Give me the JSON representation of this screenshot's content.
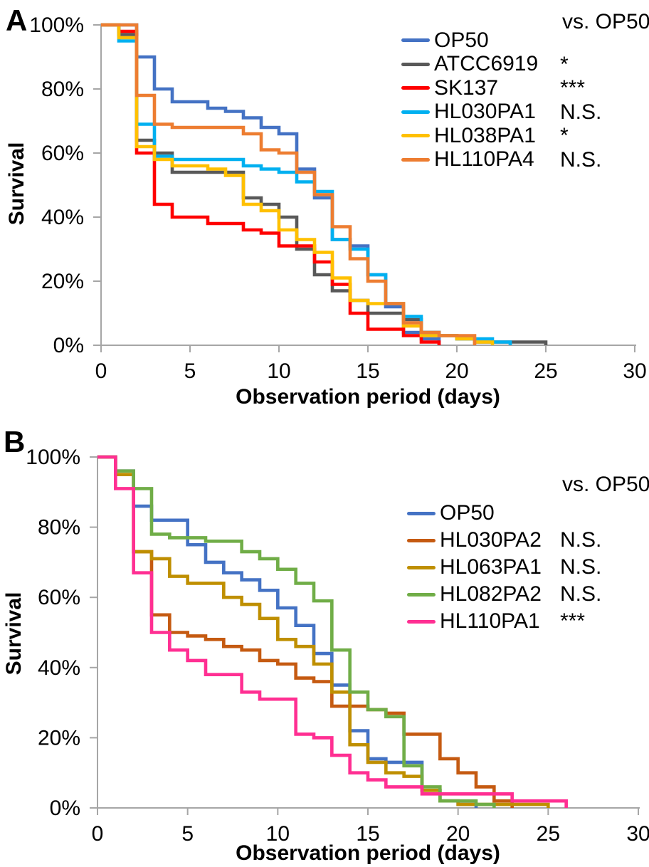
{
  "figure": {
    "background": "#ffffff",
    "axis_color": "#a6a6a6",
    "text_color": "#000000"
  },
  "chart_data": [
    {
      "type": "line",
      "subtype": "kaplan-meier-step-survival",
      "panel_letter": "A",
      "xlabel": "Observation period (days)",
      "ylabel": "Survival",
      "legend_header": "vs. OP50",
      "legend_position": "upper right",
      "xlim": [
        0,
        30
      ],
      "ylim": [
        0,
        100
      ],
      "grid": false,
      "x_tick_labels": [
        "0",
        "5",
        "10",
        "15",
        "20",
        "25",
        "30"
      ],
      "y_tick_labels": [
        "100%",
        "80%",
        "60%",
        "40%",
        "20%",
        "0%"
      ],
      "point_format": "[day, percent_survival]",
      "series": [
        {
          "name": "OP50",
          "significance_vs_op50": "",
          "color": "#4472C4",
          "points": [
            [
              0,
              100
            ],
            [
              2,
              90
            ],
            [
              3,
              80
            ],
            [
              4,
              76
            ],
            [
              6,
              74
            ],
            [
              7,
              73
            ],
            [
              8,
              71
            ],
            [
              9,
              68
            ],
            [
              10,
              66
            ],
            [
              11,
              55
            ],
            [
              12,
              46
            ],
            [
              13,
              33
            ],
            [
              14,
              31
            ],
            [
              15,
              22
            ],
            [
              16,
              12
            ],
            [
              17,
              4
            ],
            [
              18,
              2
            ],
            [
              19,
              0
            ]
          ]
        },
        {
          "name": "ATCC6919",
          "significance_vs_op50": "*",
          "color": "#595959",
          "points": [
            [
              0,
              100
            ],
            [
              1,
              97
            ],
            [
              2,
              64
            ],
            [
              3,
              60
            ],
            [
              4,
              54
            ],
            [
              8,
              46
            ],
            [
              9,
              44
            ],
            [
              10,
              40
            ],
            [
              11,
              30
            ],
            [
              12,
              22
            ],
            [
              13,
              17
            ],
            [
              14,
              14
            ],
            [
              15,
              10
            ],
            [
              17,
              8
            ],
            [
              18,
              4
            ],
            [
              19,
              3
            ],
            [
              20,
              2
            ],
            [
              21,
              1
            ],
            [
              25,
              0
            ]
          ]
        },
        {
          "name": "SK137",
          "significance_vs_op50": "***",
          "color": "#FF0000",
          "points": [
            [
              0,
              100
            ],
            [
              1,
              98
            ],
            [
              2,
              60
            ],
            [
              3,
              44
            ],
            [
              4,
              40
            ],
            [
              6,
              38
            ],
            [
              8,
              36
            ],
            [
              9,
              35
            ],
            [
              10,
              31
            ],
            [
              12,
              26
            ],
            [
              13,
              19
            ],
            [
              14,
              10
            ],
            [
              15,
              5
            ],
            [
              17,
              3
            ],
            [
              18,
              1
            ],
            [
              19,
              0
            ]
          ]
        },
        {
          "name": "HL030PA1",
          "significance_vs_op50": "N.S.",
          "color": "#00B0F0",
          "points": [
            [
              0,
              100
            ],
            [
              1,
              95
            ],
            [
              2,
              69
            ],
            [
              3,
              59
            ],
            [
              4,
              58
            ],
            [
              8,
              56
            ],
            [
              9,
              55
            ],
            [
              10,
              54
            ],
            [
              11,
              51
            ],
            [
              12,
              48
            ],
            [
              13,
              33
            ],
            [
              14,
              30
            ],
            [
              15,
              22
            ],
            [
              16,
              13
            ],
            [
              17,
              9
            ],
            [
              18,
              4
            ],
            [
              19,
              3
            ],
            [
              20,
              2
            ],
            [
              22,
              1
            ],
            [
              23,
              0
            ]
          ]
        },
        {
          "name": "HL038PA1",
          "significance_vs_op50": "*",
          "color": "#FFC000",
          "points": [
            [
              0,
              100
            ],
            [
              1,
              96
            ],
            [
              2,
              62
            ],
            [
              3,
              58
            ],
            [
              4,
              56
            ],
            [
              6,
              55
            ],
            [
              7,
              53
            ],
            [
              8,
              44
            ],
            [
              9,
              42
            ],
            [
              10,
              36
            ],
            [
              11,
              33
            ],
            [
              12,
              29
            ],
            [
              13,
              21
            ],
            [
              14,
              14
            ],
            [
              15,
              13
            ],
            [
              17,
              6
            ],
            [
              18,
              3
            ],
            [
              20,
              2
            ],
            [
              21,
              1
            ],
            [
              22,
              0
            ]
          ]
        },
        {
          "name": "HL110PA4",
          "significance_vs_op50": "N.S.",
          "color": "#ED7D31",
          "points": [
            [
              0,
              100
            ],
            [
              2,
              78
            ],
            [
              3,
              69
            ],
            [
              4,
              68
            ],
            [
              8,
              66
            ],
            [
              9,
              61
            ],
            [
              10,
              60
            ],
            [
              11,
              54
            ],
            [
              12,
              47
            ],
            [
              13,
              37
            ],
            [
              14,
              27
            ],
            [
              15,
              20
            ],
            [
              16,
              13
            ],
            [
              17,
              7
            ],
            [
              18,
              4
            ],
            [
              19,
              3
            ],
            [
              21,
              0
            ]
          ]
        }
      ]
    },
    {
      "type": "line",
      "subtype": "kaplan-meier-step-survival",
      "panel_letter": "B",
      "xlabel": "Observation period (days)",
      "ylabel": "Survival",
      "legend_header": "vs. OP50",
      "legend_position": "upper right",
      "xlim": [
        0,
        30
      ],
      "ylim": [
        0,
        100
      ],
      "grid": false,
      "x_tick_labels": [
        "0",
        "5",
        "10",
        "15",
        "20",
        "25",
        "30"
      ],
      "y_tick_labels": [
        "100%",
        "80%",
        "60%",
        "40%",
        "20%",
        "0%"
      ],
      "point_format": "[day, percent_survival]",
      "series": [
        {
          "name": "OP50",
          "significance_vs_op50": "",
          "color": "#4472C4",
          "points": [
            [
              0,
              100
            ],
            [
              1,
              96
            ],
            [
              2,
              86
            ],
            [
              3,
              82
            ],
            [
              5,
              75
            ],
            [
              6,
              70
            ],
            [
              7,
              67
            ],
            [
              8,
              65
            ],
            [
              9,
              62
            ],
            [
              10,
              57
            ],
            [
              11,
              52
            ],
            [
              12,
              44
            ],
            [
              13,
              35
            ],
            [
              14,
              22
            ],
            [
              15,
              14
            ],
            [
              16,
              13
            ],
            [
              18,
              5
            ],
            [
              19,
              2
            ],
            [
              20,
              1
            ],
            [
              21,
              0
            ]
          ]
        },
        {
          "name": "HL030PA2",
          "significance_vs_op50": "N.S.",
          "color": "#C55A11",
          "points": [
            [
              0,
              100
            ],
            [
              1,
              95
            ],
            [
              2,
              73
            ],
            [
              3,
              55
            ],
            [
              4,
              50
            ],
            [
              5,
              49
            ],
            [
              6,
              48
            ],
            [
              7,
              46
            ],
            [
              8,
              45
            ],
            [
              9,
              42
            ],
            [
              10,
              41
            ],
            [
              11,
              37
            ],
            [
              12,
              36
            ],
            [
              13,
              29
            ],
            [
              15,
              28
            ],
            [
              16,
              27
            ],
            [
              17,
              21
            ],
            [
              19,
              14
            ],
            [
              20,
              10
            ],
            [
              21,
              6
            ],
            [
              22,
              2
            ],
            [
              23,
              0
            ]
          ]
        },
        {
          "name": "HL063PA1",
          "significance_vs_op50": "N.S.",
          "color": "#BF8F00",
          "points": [
            [
              0,
              100
            ],
            [
              1,
              95
            ],
            [
              2,
              73
            ],
            [
              3,
              71
            ],
            [
              4,
              66
            ],
            [
              5,
              64
            ],
            [
              7,
              60
            ],
            [
              8,
              58
            ],
            [
              9,
              54
            ],
            [
              10,
              48
            ],
            [
              11,
              46
            ],
            [
              12,
              41
            ],
            [
              13,
              33
            ],
            [
              14,
              18
            ],
            [
              15,
              13
            ],
            [
              16,
              10
            ],
            [
              17,
              9
            ],
            [
              18,
              5
            ],
            [
              19,
              2
            ],
            [
              20,
              1
            ],
            [
              25,
              0
            ]
          ]
        },
        {
          "name": "HL082PA2",
          "significance_vs_op50": "N.S.",
          "color": "#70AD47",
          "points": [
            [
              0,
              100
            ],
            [
              1,
              96
            ],
            [
              2,
              91
            ],
            [
              3,
              78
            ],
            [
              4,
              77
            ],
            [
              6,
              76
            ],
            [
              8,
              73
            ],
            [
              9,
              71
            ],
            [
              10,
              68
            ],
            [
              11,
              64
            ],
            [
              12,
              59
            ],
            [
              13,
              45
            ],
            [
              14,
              33
            ],
            [
              15,
              28
            ],
            [
              16,
              26
            ],
            [
              17,
              12
            ],
            [
              18,
              6
            ],
            [
              19,
              2
            ],
            [
              21,
              1
            ],
            [
              22,
              0
            ]
          ]
        },
        {
          "name": "HL110PA1",
          "significance_vs_op50": "***",
          "color": "#FF2F92",
          "points": [
            [
              0,
              100
            ],
            [
              1,
              91
            ],
            [
              2,
              67
            ],
            [
              3,
              50
            ],
            [
              4,
              45
            ],
            [
              5,
              42
            ],
            [
              6,
              38
            ],
            [
              8,
              33
            ],
            [
              9,
              31
            ],
            [
              11,
              21
            ],
            [
              12,
              20
            ],
            [
              13,
              15
            ],
            [
              14,
              10
            ],
            [
              15,
              8
            ],
            [
              16,
              6
            ],
            [
              18,
              4
            ],
            [
              23,
              2
            ],
            [
              26,
              0
            ]
          ]
        }
      ]
    }
  ]
}
